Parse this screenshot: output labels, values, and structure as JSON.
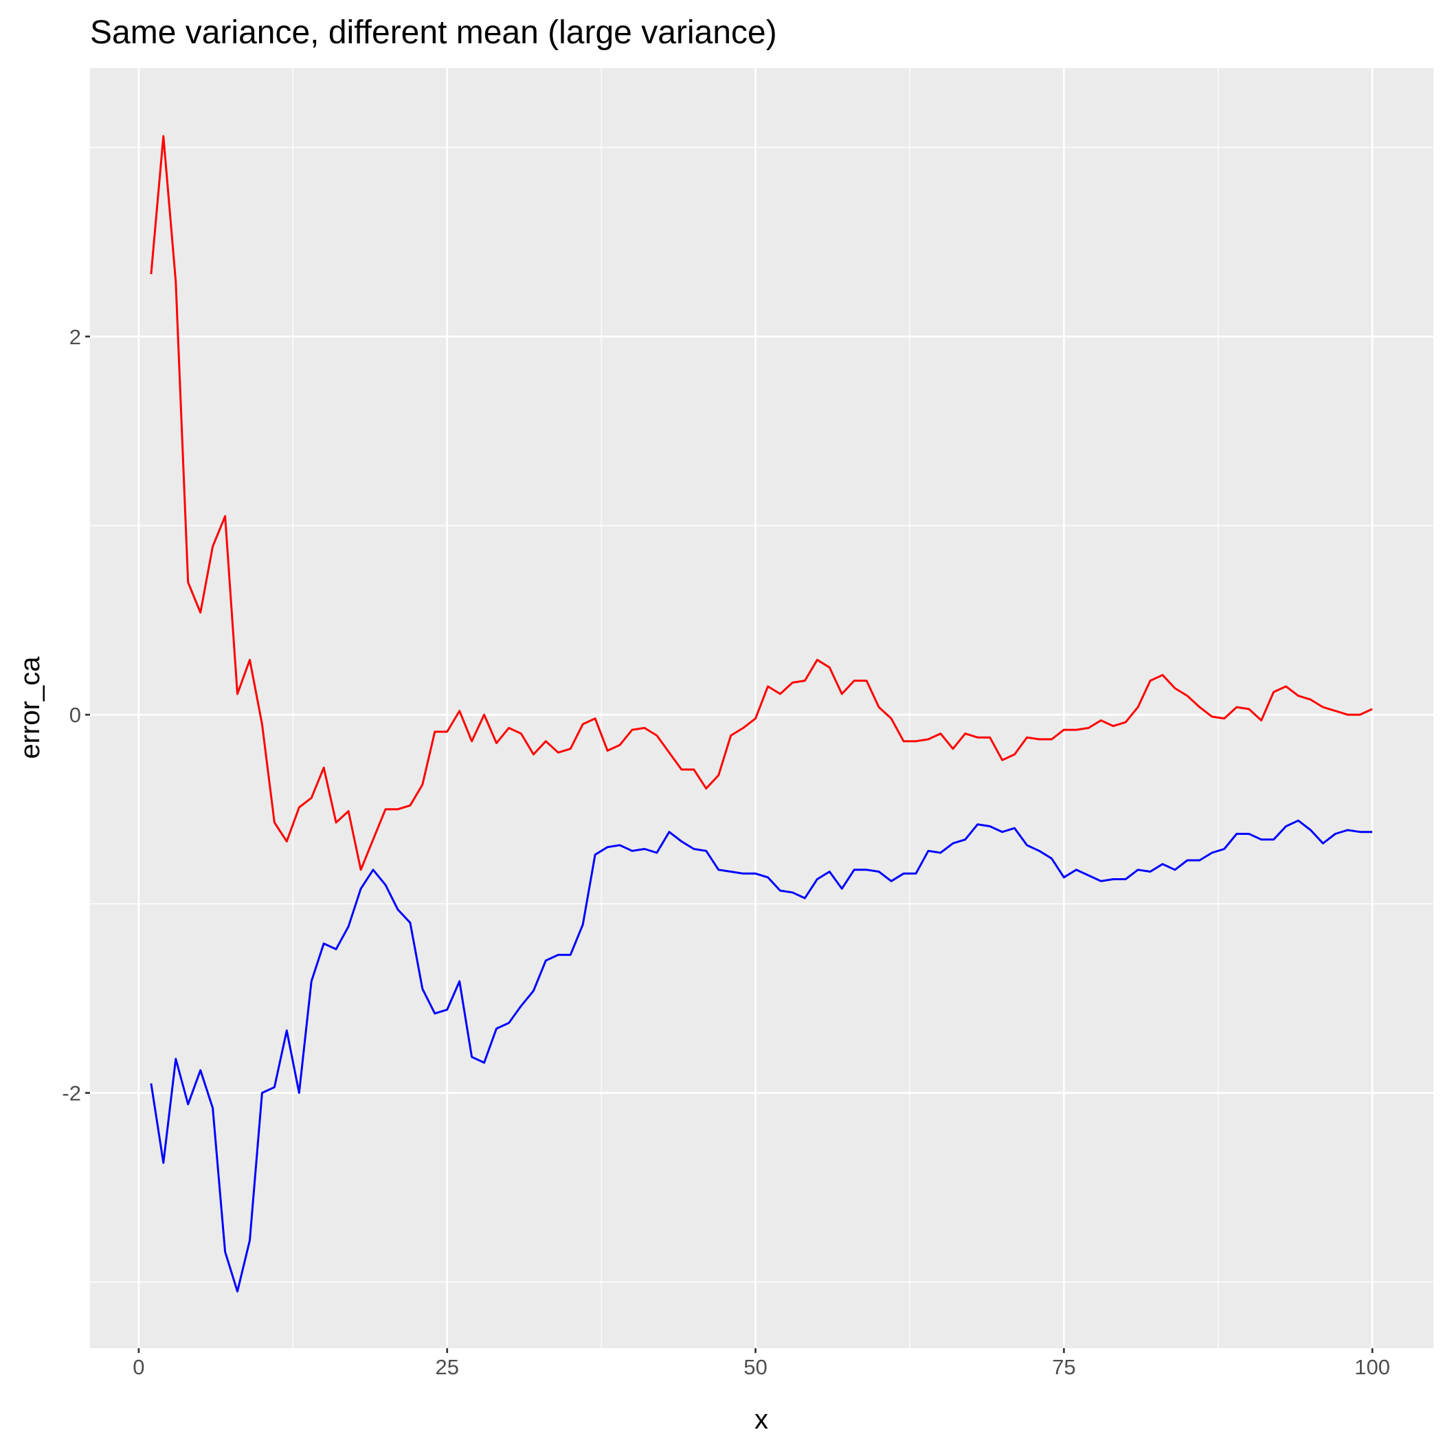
{
  "chart_data": {
    "type": "line",
    "title": "Same variance, different mean (large variance)",
    "xlabel": "x",
    "ylabel": "error_ca",
    "xlim": [
      -3.95,
      104.95
    ],
    "ylim": [
      -3.35,
      3.42
    ],
    "x_ticks": [
      {
        "value": 0,
        "label": "0"
      },
      {
        "value": 25,
        "label": "25"
      },
      {
        "value": 50,
        "label": "50"
      },
      {
        "value": 75,
        "label": "75"
      },
      {
        "value": 100,
        "label": "100"
      }
    ],
    "y_ticks": [
      {
        "value": -2,
        "label": "-2"
      },
      {
        "value": 0,
        "label": "0"
      },
      {
        "value": 2,
        "label": "2"
      }
    ],
    "x_minor": [
      12.5,
      37.5,
      62.5,
      87.5
    ],
    "y_minor": [
      -3,
      -1,
      1,
      3
    ],
    "grid": true,
    "legend": "none",
    "background_color": "#EBEBEB",
    "grid_color": "#FFFFFF",
    "x": [
      1,
      2,
      3,
      4,
      5,
      6,
      7,
      8,
      9,
      10,
      11,
      12,
      13,
      14,
      15,
      16,
      17,
      18,
      19,
      20,
      21,
      22,
      23,
      24,
      25,
      26,
      27,
      28,
      29,
      30,
      31,
      32,
      33,
      34,
      35,
      36,
      37,
      38,
      39,
      40,
      41,
      42,
      43,
      44,
      45,
      46,
      47,
      48,
      49,
      50,
      51,
      52,
      53,
      54,
      55,
      56,
      57,
      58,
      59,
      60,
      61,
      62,
      63,
      64,
      65,
      66,
      67,
      68,
      69,
      70,
      71,
      72,
      73,
      74,
      75,
      76,
      77,
      78,
      79,
      80,
      81,
      82,
      83,
      84,
      85,
      86,
      87,
      88,
      89,
      90,
      91,
      92,
      93,
      94,
      95,
      96,
      97,
      98,
      99,
      100
    ],
    "series": [
      {
        "color": "#FF0000",
        "values": [
          2.33,
          3.06,
          2.29,
          0.7,
          0.54,
          0.89,
          1.05,
          0.11,
          0.29,
          -0.05,
          -0.57,
          -0.67,
          -0.49,
          -0.44,
          -0.28,
          -0.57,
          -0.51,
          -0.82,
          -0.66,
          -0.5,
          -0.5,
          -0.48,
          -0.37,
          -0.09,
          -0.09,
          0.02,
          -0.14,
          0.0,
          -0.15,
          -0.07,
          -0.1,
          -0.21,
          -0.14,
          -0.2,
          -0.18,
          -0.05,
          -0.02,
          -0.19,
          -0.16,
          -0.08,
          -0.07,
          -0.11,
          -0.2,
          -0.29,
          -0.29,
          -0.39,
          -0.32,
          -0.11,
          -0.07,
          -0.02,
          0.15,
          0.11,
          0.17,
          0.18,
          0.29,
          0.25,
          0.11,
          0.18,
          0.18,
          0.04,
          -0.02,
          -0.14,
          -0.14,
          -0.13,
          -0.1,
          -0.18,
          -0.1,
          -0.12,
          -0.12,
          -0.24,
          -0.21,
          -0.12,
          -0.13,
          -0.13,
          -0.08,
          -0.08,
          -0.07,
          -0.03,
          -0.06,
          -0.04,
          0.04,
          0.18,
          0.21,
          0.14,
          0.1,
          0.04,
          -0.01,
          -0.02,
          0.04,
          0.03,
          -0.03,
          0.12,
          0.15,
          0.1,
          0.08,
          0.04,
          0.02,
          0.0,
          0.0,
          0.03
        ]
      },
      {
        "color": "#0000FF",
        "values": [
          -1.95,
          -2.37,
          -1.82,
          -2.06,
          -1.88,
          -2.08,
          -2.84,
          -3.05,
          -2.78,
          -2.0,
          -1.97,
          -1.67,
          -2.0,
          -1.41,
          -1.21,
          -1.24,
          -1.12,
          -0.92,
          -0.82,
          -0.9,
          -1.03,
          -1.1,
          -1.45,
          -1.58,
          -1.56,
          -1.41,
          -1.81,
          -1.84,
          -1.66,
          -1.63,
          -1.54,
          -1.46,
          -1.3,
          -1.27,
          -1.27,
          -1.11,
          -0.74,
          -0.7,
          -0.69,
          -0.72,
          -0.71,
          -0.73,
          -0.62,
          -0.67,
          -0.71,
          -0.72,
          -0.82,
          -0.83,
          -0.84,
          -0.84,
          -0.86,
          -0.93,
          -0.94,
          -0.97,
          -0.87,
          -0.83,
          -0.92,
          -0.82,
          -0.82,
          -0.83,
          -0.88,
          -0.84,
          -0.84,
          -0.72,
          -0.73,
          -0.68,
          -0.66,
          -0.58,
          -0.59,
          -0.62,
          -0.6,
          -0.69,
          -0.72,
          -0.76,
          -0.86,
          -0.82,
          -0.85,
          -0.88,
          -0.87,
          -0.87,
          -0.82,
          -0.83,
          -0.79,
          -0.82,
          -0.77,
          -0.77,
          -0.73,
          -0.71,
          -0.63,
          -0.63,
          -0.66,
          -0.66,
          -0.59,
          -0.56,
          -0.61,
          -0.68,
          -0.63,
          -0.61,
          -0.62,
          -0.62
        ]
      }
    ]
  }
}
